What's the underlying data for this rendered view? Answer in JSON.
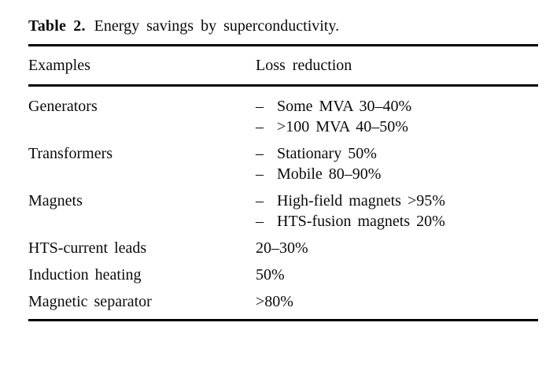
{
  "caption": {
    "label": "Table 2.",
    "text": "Energy savings by superconductivity."
  },
  "table": {
    "headers": [
      "Examples",
      "Loss reduction"
    ],
    "rows": [
      {
        "example": "Generators",
        "items": [
          {
            "bullet": "–",
            "text": "Some MVA 30–40%"
          },
          {
            "bullet": "–",
            "text": ">100 MVA 40–50%"
          }
        ]
      },
      {
        "example": "Transformers",
        "items": [
          {
            "bullet": "–",
            "text": "Stationary 50%"
          },
          {
            "bullet": "–",
            "text": "Mobile 80–90%"
          }
        ]
      },
      {
        "example": "Magnets",
        "items": [
          {
            "bullet": "–",
            "text": "High-field magnets >95%"
          },
          {
            "bullet": "–",
            "text": "HTS-fusion magnets 20%"
          }
        ]
      },
      {
        "example": "HTS-current leads",
        "items": [
          {
            "text": "20–30%"
          }
        ]
      },
      {
        "example": "Induction heating",
        "items": [
          {
            "text": "50%"
          }
        ]
      },
      {
        "example": "Magnetic separator",
        "items": [
          {
            "text": ">80%"
          }
        ]
      }
    ]
  },
  "colors": {
    "text": "#0a0a0a",
    "background": "#ffffff",
    "rule": "#000000"
  }
}
